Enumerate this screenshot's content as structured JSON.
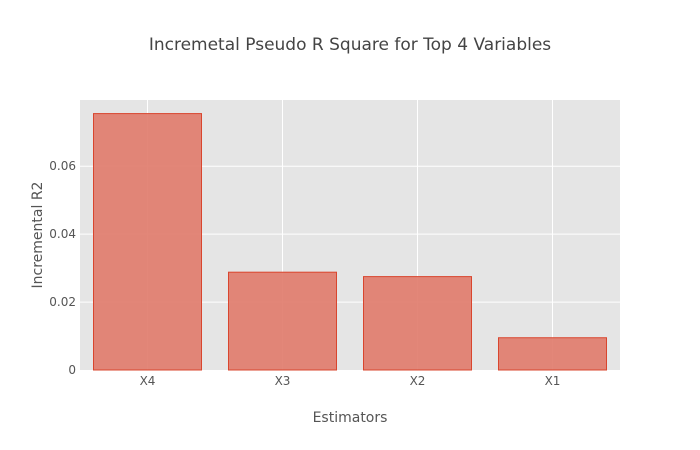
{
  "chart_data": {
    "type": "bar",
    "title": "Incremetal Pseudo R Square for Top 4 Variables",
    "xlabel": "Estimators",
    "ylabel": "Incremental R2",
    "categories": [
      "X4",
      "X3",
      "X2",
      "X1"
    ],
    "values": [
      0.0755,
      0.0288,
      0.0275,
      0.0095
    ],
    "ylim": [
      0,
      0.0795
    ],
    "yticks": [
      0,
      0.02,
      0.04,
      0.06
    ],
    "ytick_labels": [
      "0",
      "0.02",
      "0.04",
      "0.06"
    ],
    "grid": true,
    "colors": {
      "bar_fill": "#e07a6a",
      "bar_stroke": "#d9452e",
      "plot_background": "#e5e5e5",
      "grid": "#ffffff"
    }
  }
}
